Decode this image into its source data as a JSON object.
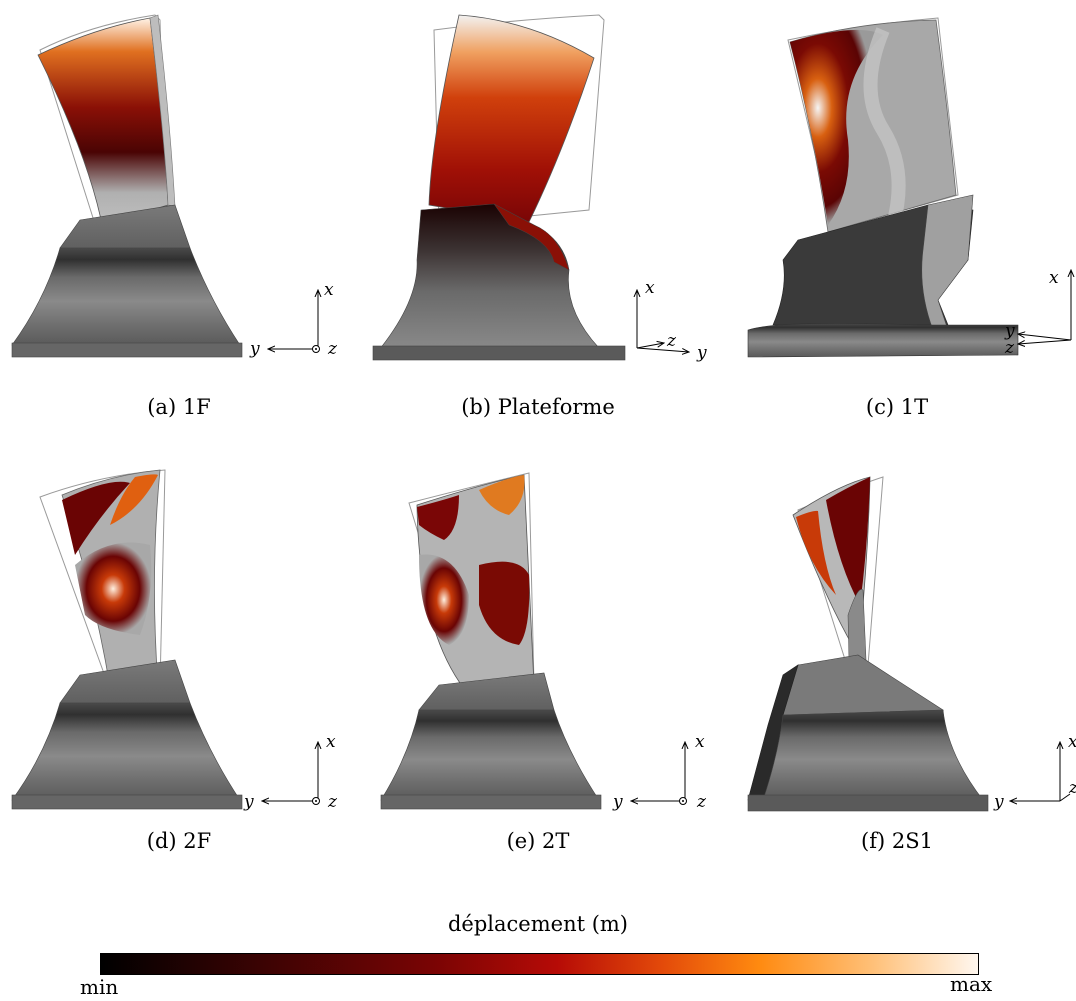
{
  "figure": {
    "panels": [
      {
        "caption": "(a) 1F",
        "axes": {
          "a": "x",
          "b": "y",
          "c": "z"
        }
      },
      {
        "caption": "(b) Plateforme",
        "axes": {
          "a": "x",
          "b": "z",
          "c": "y"
        }
      },
      {
        "caption": "(c) 1T",
        "axes": {
          "a": "x",
          "b": "y",
          "c": "z"
        }
      },
      {
        "caption": "(d) 2F",
        "axes": {
          "a": "x",
          "b": "y",
          "c": "z"
        }
      },
      {
        "caption": "(e) 2T",
        "axes": {
          "a": "x",
          "b": "y",
          "c": "z"
        }
      },
      {
        "caption": "(f) 2S1",
        "axes": {
          "a": "x",
          "b": "y",
          "c": "z"
        }
      }
    ],
    "colorbar": {
      "title": "déplacement (m)",
      "min_label": "min",
      "max_label": "max",
      "colors": [
        "#000000",
        "#7a0404",
        "#b60b06",
        "#ff8a10",
        "#fff7ef"
      ]
    }
  }
}
